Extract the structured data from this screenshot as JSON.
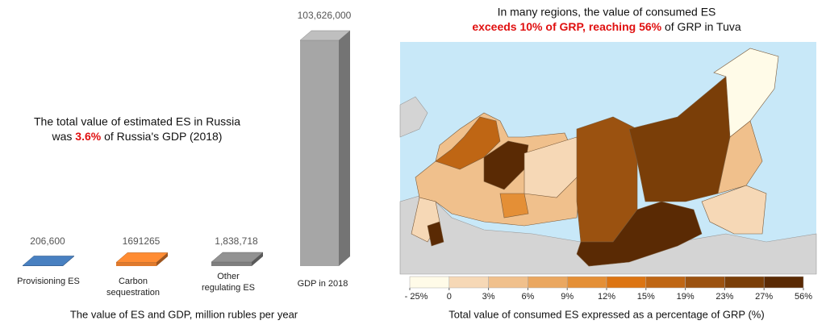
{
  "chart_data": [
    {
      "type": "bar3d",
      "annotation": [
        "The total value of estimated ES in Russia",
        "was ",
        "3.6%",
        " of Russia's GDP (2018)"
      ],
      "x_label": "The value of ES and GDP, million rubles per year",
      "categories": [
        "Provisioning ES",
        "Carbon sequestration",
        "Other regulating ES",
        "GDP in 2018"
      ],
      "values": [
        206600,
        1691265,
        1838718,
        103626000
      ],
      "value_labels": [
        "206,600",
        "1691265",
        "1,838,718",
        "103,626,000"
      ],
      "colors": [
        "#3f6fa8",
        "#e07a2c",
        "#7f7f7f",
        "#a6a6a6"
      ],
      "ylim": [
        0,
        103626000
      ]
    },
    {
      "type": "choropleth",
      "title": [
        "In many regions, the value of consumed ES",
        "exceeds 10% of GRP",
        ", ",
        "reaching 56%",
        " of GRP in Tuva"
      ],
      "legend_label": "Total value of consumed ES expressed as a percentage of GRP (%)",
      "colors": [
        "#fffbe8",
        "#f6d8b6",
        "#f0c08c",
        "#eaa760",
        "#e48f36",
        "#dc7412",
        "#bf6614",
        "#9b5210",
        "#7a3e08",
        "#5a2a04"
      ],
      "ticks": [
        {
          "value": -25,
          "label": "- 25%"
        },
        0,
        {
          "value": 3,
          "label": "3%"
        },
        {
          "value": 6,
          "label": "6%"
        },
        {
          "value": 9,
          "label": "9%"
        },
        {
          "value": 12,
          "label": "12%"
        },
        {
          "value": 15,
          "label": "15%"
        },
        {
          "value": 19,
          "label": "19%"
        },
        {
          "value": 23,
          "label": "23%"
        },
        {
          "value": 27,
          "label": "27%"
        },
        {
          "value": 56,
          "label": "56%"
        }
      ]
    }
  ]
}
